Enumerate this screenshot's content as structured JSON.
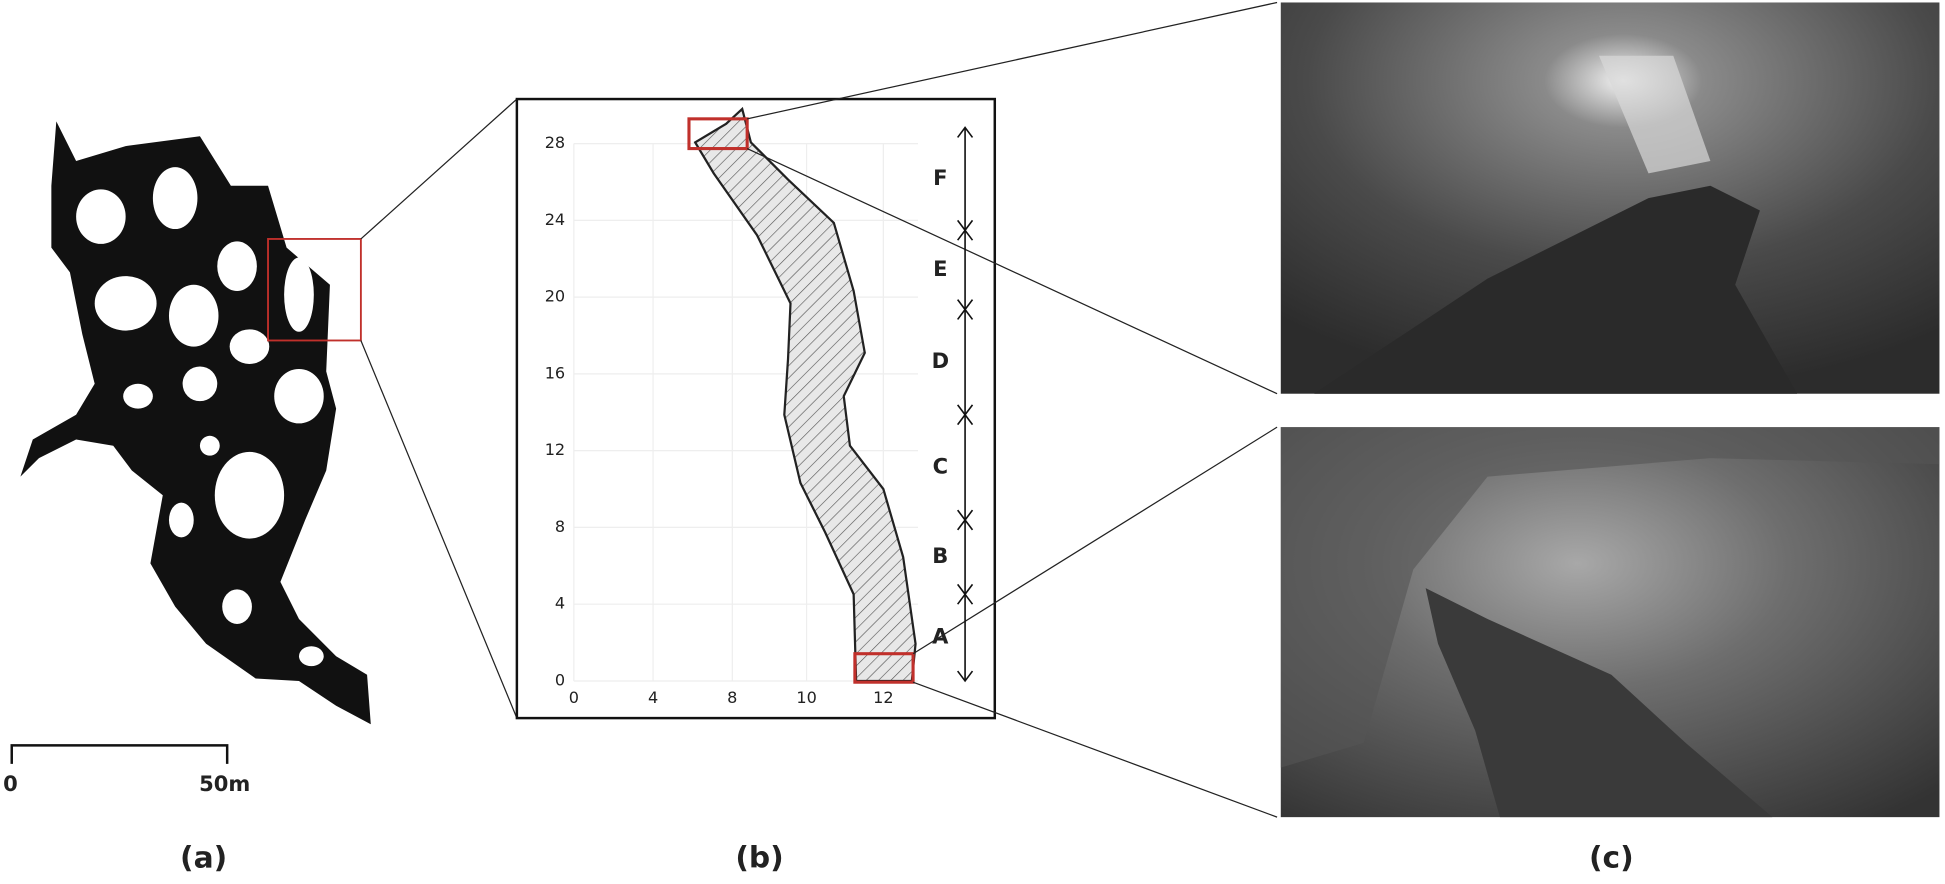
{
  "panels": {
    "a": "(a)",
    "b": "(b)",
    "c": "(c)"
  },
  "scale_bar": {
    "start": "0",
    "end": "50m"
  },
  "plot": {
    "yticks": [
      "0",
      "4",
      "8",
      "12",
      "16",
      "20",
      "24",
      "28"
    ],
    "xticks": [
      "0",
      "4",
      "8",
      "10",
      "12"
    ],
    "segments": [
      "A",
      "B",
      "C",
      "D",
      "E",
      "F"
    ]
  }
}
